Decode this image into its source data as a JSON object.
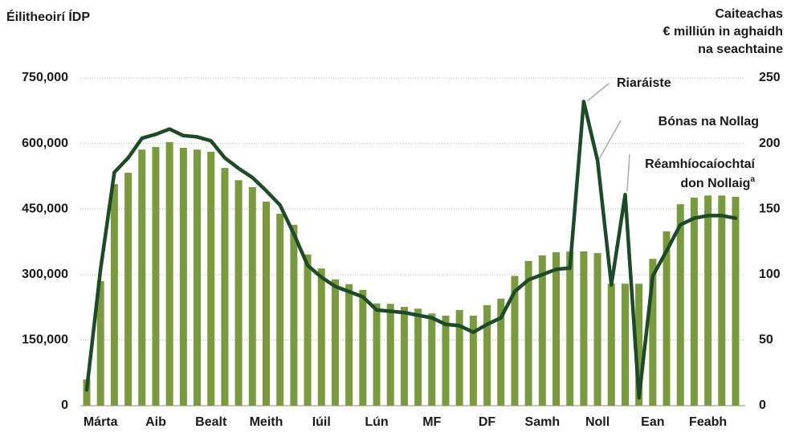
{
  "chart_data": {
    "type": "bar-line",
    "y_title": "Éilitheoirí ÍDP",
    "y2_title": [
      "Caiteachas",
      "€ milliún in aghaidh",
      "na seachtaine"
    ],
    "categories": [
      null,
      "Márta",
      null,
      null,
      null,
      "Aib",
      null,
      null,
      null,
      "Bealt",
      null,
      null,
      null,
      "Meith",
      null,
      null,
      null,
      "Iúil",
      null,
      null,
      null,
      "Lún",
      null,
      null,
      null,
      "MF",
      null,
      null,
      null,
      "DF",
      null,
      null,
      null,
      "Samh",
      null,
      null,
      null,
      "Noll",
      null,
      null,
      null,
      "Ean",
      null,
      null,
      null,
      "Feabh",
      null,
      null
    ],
    "series": [
      {
        "name": "Éilitheoirí ÍDP",
        "type": "bar",
        "color": "#7a9a3f",
        "values": [
          60000,
          285000,
          507000,
          533000,
          586000,
          592000,
          603000,
          590000,
          586000,
          581000,
          544000,
          516000,
          500000,
          467000,
          439000,
          414000,
          346000,
          314000,
          289000,
          278000,
          265000,
          234000,
          233000,
          226000,
          222000,
          211000,
          206000,
          219000,
          206000,
          230000,
          245000,
          297000,
          331000,
          344000,
          351000,
          353000,
          353000,
          349000,
          279000,
          279000,
          279000,
          336000,
          399000,
          461000,
          476000,
          481000,
          481000,
          478000
        ]
      },
      {
        "name": "Caiteachas",
        "type": "line",
        "axis": "y2",
        "color": "#1d4a27",
        "values": [
          12,
          104,
          178,
          189,
          204,
          207,
          211,
          206,
          205,
          202,
          189,
          181,
          174,
          164,
          153,
          131,
          107,
          98,
          91,
          87,
          83,
          73,
          72,
          71,
          69,
          67,
          62,
          61,
          56,
          62,
          67,
          87,
          96,
          100,
          104,
          105,
          232,
          187,
          92,
          161,
          6,
          99,
          118,
          138,
          143,
          145,
          145,
          143
        ]
      }
    ],
    "ylim": [
      0,
      750000
    ],
    "yticks": [
      0,
      {
        "value": 150000,
        "label": "150,000"
      },
      {
        "value": 300000,
        "label": "300,000"
      },
      {
        "value": 450000,
        "label": "450,000"
      },
      {
        "value": 600000,
        "label": "600,000"
      },
      {
        "value": 750000,
        "label": "750,000"
      }
    ],
    "y2lim": [
      0,
      250
    ],
    "y2ticks": [
      0,
      50,
      100,
      150,
      200,
      250
    ],
    "grid": true,
    "annotations": [
      {
        "lines": [
          "Riaráiste"
        ]
      },
      {
        "lines": [
          "Bónas na Nollag"
        ]
      },
      {
        "lines": [
          "Réamhíocaíochtaí",
          "don Nollaig"
        ],
        "marker": "a"
      }
    ]
  }
}
